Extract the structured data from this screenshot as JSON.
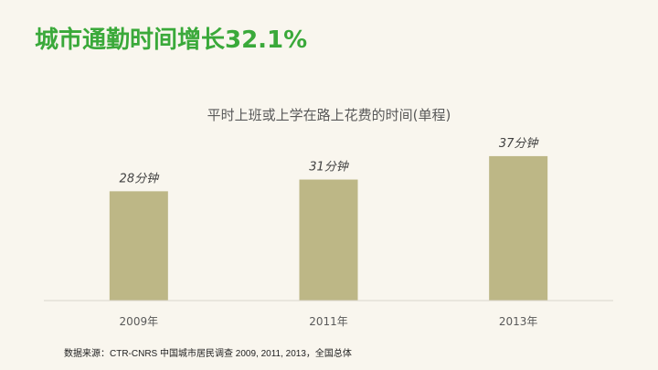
{
  "slide": {
    "title": "城市通勤时间增长32.1%",
    "source": "数据来源：CTR-CNRS 中国城市居民调查 2009, 2011, 2013，全国总体"
  },
  "colors": {
    "title": "#3aa93a",
    "bar": "#bdb786",
    "axis": "#d9d6cc",
    "background": "#f9f6ee"
  },
  "chart_data": {
    "type": "bar",
    "title": "平时上班或上学在路上花费的时间(单程)",
    "categories": [
      "2009年",
      "2011年",
      "2013年"
    ],
    "values": [
      28,
      31,
      37
    ],
    "value_labels": [
      "28分钟",
      "31分钟",
      "37分钟"
    ],
    "unit": "分钟",
    "ylim": [
      0,
      44
    ],
    "grid": false,
    "legend": "none"
  }
}
